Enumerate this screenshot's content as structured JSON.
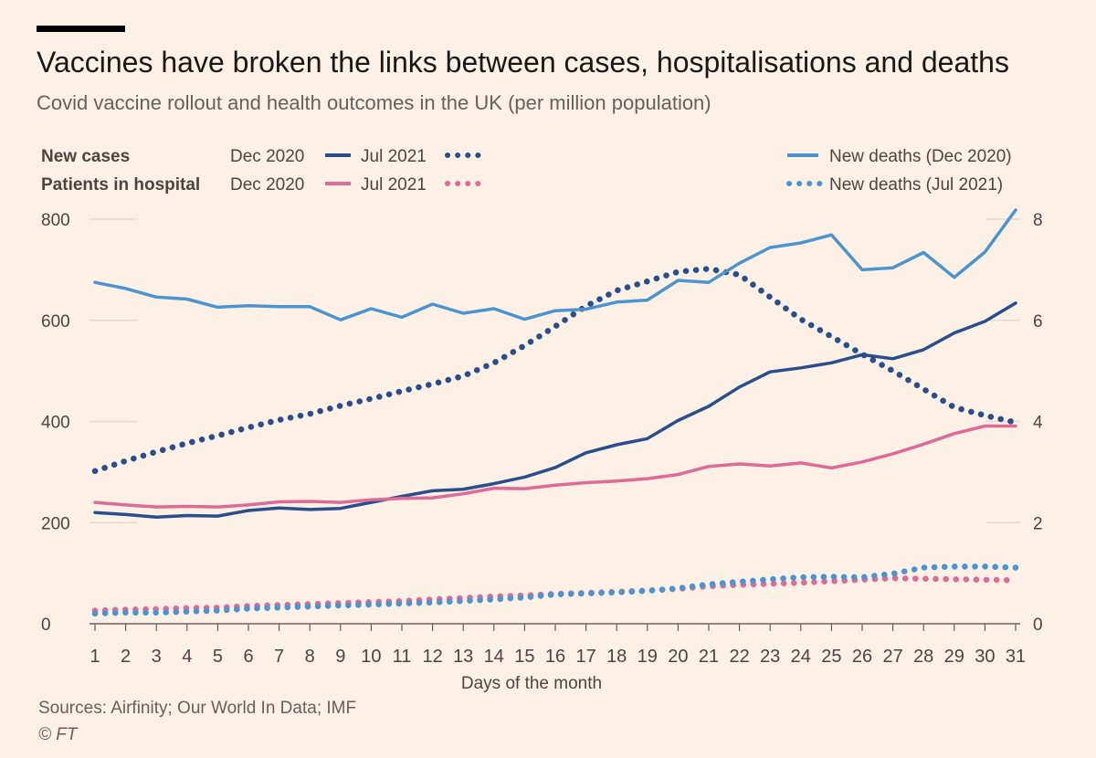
{
  "header": {
    "title": "Vaccines have broken the links between cases, hospitalisations and deaths",
    "subtitle": "Covid vaccine rollout and health outcomes in the UK (per million population)"
  },
  "legend": {
    "row1_label": "New cases",
    "row2_label": "Patients in hospital",
    "dec_label": "Dec 2020",
    "jul_label": "Jul 2021",
    "deaths_dec_label": "New deaths (Dec 2020)",
    "deaths_jul_label": "New deaths (Jul 2021)"
  },
  "footer": {
    "source": "Sources: Airfinity; Our World In Data; IMF",
    "copyright": "© FT"
  },
  "colors": {
    "dark_blue": "#2A4E8C",
    "pink": "#DD6B97",
    "light_blue": "#4B94D0",
    "grid": "#E6D9CE",
    "text": "#66605C",
    "background": "#FDF1E6"
  },
  "chart_data": {
    "type": "line",
    "xlabel": "Days of the month",
    "x": [
      1,
      2,
      3,
      4,
      5,
      6,
      7,
      8,
      9,
      10,
      11,
      12,
      13,
      14,
      15,
      16,
      17,
      18,
      19,
      20,
      21,
      22,
      23,
      24,
      25,
      26,
      27,
      28,
      29,
      30,
      31
    ],
    "y_left": {
      "ylim": [
        0,
        800
      ],
      "ticks": [
        0,
        200,
        400,
        600,
        800
      ]
    },
    "y_right": {
      "ylim": [
        0,
        8
      ],
      "ticks": [
        0,
        2,
        4,
        6,
        8
      ]
    },
    "grid": true,
    "legend_position": "top",
    "series": [
      {
        "name": "New cases Dec 2020",
        "axis": "left",
        "style": "solid",
        "color": "#2A4E8C",
        "values": [
          220,
          216,
          211,
          214,
          213,
          224,
          229,
          226,
          228,
          240,
          252,
          263,
          266,
          277,
          290,
          309,
          338,
          354,
          366,
          402,
          430,
          468,
          498,
          506,
          516,
          532,
          524,
          542,
          575,
          598,
          634
        ]
      },
      {
        "name": "New cases Jul 2021",
        "axis": "left",
        "style": "dotted",
        "color": "#2A4E8C",
        "values": [
          302,
          322,
          340,
          357,
          372,
          388,
          403,
          415,
          431,
          445,
          460,
          474,
          490,
          516,
          550,
          588,
          628,
          659,
          677,
          696,
          702,
          690,
          646,
          602,
          568,
          533,
          500,
          464,
          428,
          412,
          398
        ]
      },
      {
        "name": "Patients in hospital Dec 2020",
        "axis": "left",
        "style": "solid",
        "color": "#DD6B97",
        "values": [
          240,
          235,
          231,
          232,
          231,
          235,
          241,
          242,
          240,
          245,
          248,
          249,
          257,
          268,
          267,
          274,
          279,
          282,
          287,
          295,
          311,
          316,
          312,
          318,
          308,
          320,
          336,
          355,
          376,
          391,
          391
        ]
      },
      {
        "name": "Patients in hospital Jul 2021",
        "axis": "left",
        "style": "dotted",
        "color": "#DD6B97",
        "values": [
          26,
          28,
          29,
          31,
          32,
          35,
          37,
          39,
          41,
          43,
          45,
          48,
          51,
          54,
          56,
          59,
          61,
          63,
          66,
          69,
          74,
          77,
          79,
          81,
          84,
          87,
          90,
          89,
          88,
          87,
          86
        ]
      },
      {
        "name": "New deaths (Dec 2020)",
        "axis": "right",
        "style": "solid",
        "color": "#4B94D0",
        "values": [
          6.75,
          6.63,
          6.46,
          6.42,
          6.26,
          6.29,
          6.27,
          6.27,
          6.01,
          6.23,
          6.06,
          6.32,
          6.14,
          6.23,
          6.02,
          6.19,
          6.22,
          6.36,
          6.4,
          6.79,
          6.75,
          7.13,
          7.44,
          7.53,
          7.69,
          7.0,
          7.04,
          7.34,
          6.85,
          7.35,
          8.18
        ]
      },
      {
        "name": "New deaths (Jul 2021)",
        "axis": "right",
        "style": "dotted",
        "color": "#4B94D0",
        "values": [
          0.2,
          0.22,
          0.22,
          0.24,
          0.26,
          0.3,
          0.32,
          0.34,
          0.36,
          0.38,
          0.4,
          0.42,
          0.45,
          0.48,
          0.52,
          0.58,
          0.6,
          0.62,
          0.65,
          0.7,
          0.78,
          0.83,
          0.88,
          0.92,
          0.93,
          0.92,
          0.99,
          1.11,
          1.13,
          1.13,
          1.11
        ]
      }
    ]
  }
}
